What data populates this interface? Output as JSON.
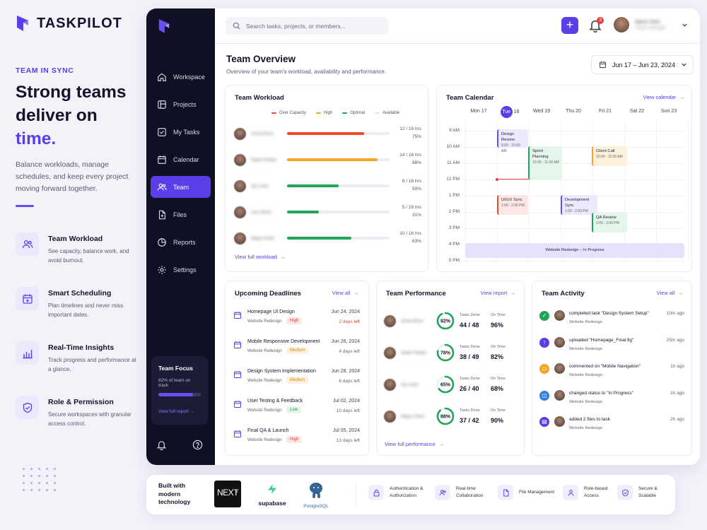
{
  "brand": {
    "name": "TASKPILOT"
  },
  "hero": {
    "kicker": "TEAM IN SYNC",
    "headline_line1": "Strong teams",
    "headline_line2_prefix": "deliver on ",
    "headline_line2_accent": "time.",
    "subcopy": "Balance workloads, manage schedules, and keep every project moving forward together."
  },
  "features": [
    {
      "icon": "team-icon",
      "title": "Team Workload",
      "desc": "See capacity, balance work, and avoid burnout."
    },
    {
      "icon": "calendar-plus-icon",
      "title": "Smart Scheduling",
      "desc": "Plan timelines and never miss important dates."
    },
    {
      "icon": "bar-chart-icon",
      "title": "Real-Time Insights",
      "desc": "Track progress and performance at a glance."
    },
    {
      "icon": "shield-check-icon",
      "title": "Role & Permission",
      "desc": "Secure workspaces with granular access control."
    }
  ],
  "sidebar": {
    "items": [
      {
        "icon": "home-icon",
        "label": "Workspace"
      },
      {
        "icon": "folder-icon",
        "label": "Projects"
      },
      {
        "icon": "check-square-icon",
        "label": "My Tasks"
      },
      {
        "icon": "calendar-icon",
        "label": "Calendar"
      },
      {
        "icon": "users-icon",
        "label": "Team"
      },
      {
        "icon": "file-icon",
        "label": "Files"
      },
      {
        "icon": "reports-icon",
        "label": "Reports"
      },
      {
        "icon": "settings-icon",
        "label": "Settings"
      }
    ],
    "active": "Team",
    "focus": {
      "title": "Team Focus",
      "subtitle": "82% of team on track",
      "progress": 0.82,
      "link": "View full report →"
    }
  },
  "topbar": {
    "search_placeholder": "Search tasks, projects, or members...",
    "notification_count": "3",
    "user_name": "Name Here",
    "user_role": "Project Manager"
  },
  "page": {
    "title": "Team Overview",
    "subtitle": "Overview of your team's workload, availability and performance.",
    "date_range": "Jun 17 – Jun 23, 2024"
  },
  "workload": {
    "title": "Team Workload",
    "legend": [
      {
        "label": "Over Capacity",
        "color": "#ef4b2c"
      },
      {
        "label": "High",
        "color": "#f5a524"
      },
      {
        "label": "Optimal",
        "color": "#22a559"
      },
      {
        "label": "Available",
        "color": "#e4e4ec"
      }
    ],
    "rows": [
      {
        "name": "Anna Ross",
        "hours": "12 / 16 hrs",
        "pct": "75%",
        "fill": 0.75,
        "color": "#ef4b2c"
      },
      {
        "name": "Noah Parker",
        "hours": "14 / 16 hrs",
        "pct": "88%",
        "fill": 0.88,
        "color": "#f5a524"
      },
      {
        "name": "Ivy Lane",
        "hours": "8 / 16 hrs",
        "pct": "50%",
        "fill": 0.5,
        "color": "#22a559"
      },
      {
        "name": "Leo Grant",
        "hours": "5 / 16 hrs",
        "pct": "31%",
        "fill": 0.31,
        "color": "#22a559"
      },
      {
        "name": "Maya Chen",
        "hours": "10 / 16 hrs",
        "pct": "63%",
        "fill": 0.63,
        "color": "#22a559"
      }
    ],
    "link": "View full workload"
  },
  "calendar": {
    "title": "Team Calendar",
    "link": "View calendar",
    "days": [
      "Mon 17",
      "Tue",
      "18",
      "Wed 19",
      "Thu 20",
      "Fri 21",
      "Sat 22",
      "Sun 23"
    ],
    "hours": [
      "9 AM",
      "10 AM",
      "11 AM",
      "12 PM",
      "1 PM",
      "2 PM",
      "3 PM",
      "4 PM",
      "5 PM"
    ],
    "events": [
      {
        "title": "Design Review",
        "time": "9:00 - 10:00 AM"
      },
      {
        "title": "Sprint Planning",
        "time": "10:00 - 11:30 AM"
      },
      {
        "title": "Client Call",
        "time": "10:00 - 11:00 AM"
      },
      {
        "title": "UI/UX Sync",
        "time": "1:00 - 2:00 PM"
      },
      {
        "title": "Development Sync",
        "time": "1:00 - 2:00 PM"
      },
      {
        "title": "QA Review",
        "time": "2:00 - 3:00 PM"
      },
      {
        "title": "Website Redesign – In Progress",
        "time": ""
      }
    ]
  },
  "deadlines": {
    "title": "Upcoming Deadlines",
    "link": "View all",
    "rows": [
      {
        "title": "Homepage UI Design",
        "project": "Website Redesign",
        "priority": "High",
        "date": "Jun 24, 2024",
        "left": "2 days left",
        "urgent": true
      },
      {
        "title": "Mobile Responsive Development",
        "project": "Website Redesign",
        "priority": "Medium",
        "date": "Jun 26, 2024",
        "left": "4 days left",
        "urgent": false
      },
      {
        "title": "Design System Implementation",
        "project": "Website Redesign",
        "priority": "Medium",
        "date": "Jun 28, 2024",
        "left": "6 days left",
        "urgent": false
      },
      {
        "title": "User Testing & Feedback",
        "project": "Website Redesign",
        "priority": "Low",
        "date": "Jul 02, 2024",
        "left": "10 days left",
        "urgent": false
      },
      {
        "title": "Final QA & Launch",
        "project": "Website Redesign",
        "priority": "High",
        "date": "Jul 05, 2024",
        "left": "13 days left",
        "urgent": false
      }
    ]
  },
  "performance": {
    "title": "Team Performance",
    "link": "View report",
    "done_label": "Tasks Done",
    "ontime_label": "On Time",
    "rows": [
      {
        "name": "Anna Ross",
        "score": "92%",
        "ring": 0.92,
        "done": "44 / 48",
        "ontime": "96%"
      },
      {
        "name": "Noah Parker",
        "score": "78%",
        "ring": 0.78,
        "done": "38 / 49",
        "ontime": "82%"
      },
      {
        "name": "Ivy Lane",
        "score": "65%",
        "ring": 0.65,
        "done": "26 / 40",
        "ontime": "68%"
      },
      {
        "name": "Maya Chen",
        "score": "88%",
        "ring": 0.88,
        "done": "37 / 42",
        "ontime": "90%"
      }
    ],
    "footer_link": "View full performance"
  },
  "activity": {
    "title": "Team Activity",
    "link": "View all",
    "rows": [
      {
        "icon": "check-icon",
        "color": "#22a559",
        "text": "completed task \"Design System Setup\"",
        "project": "Website Redesign",
        "time": "10m ago"
      },
      {
        "icon": "upload-icon",
        "color": "#5b3ee8",
        "text": "uploaded \"Homepage_Final.fig\"",
        "project": "Website Redesign",
        "time": "25m ago"
      },
      {
        "icon": "comment-icon",
        "color": "#f5a524",
        "text": "commented on \"Mobile Navigation\"",
        "project": "Website Redesign",
        "time": "1h ago"
      },
      {
        "icon": "status-icon",
        "color": "#2f7de1",
        "text": "changed status to \"In Progress\"",
        "project": "Website Redesign",
        "time": "1h ago"
      },
      {
        "icon": "file-icon",
        "color": "#5b3ee8",
        "text": "added 2 files to task",
        "project": "Website Redesign",
        "time": "2h ago"
      }
    ]
  },
  "footer": {
    "built_with": "Built with modern technology",
    "next_label": "NEXT",
    "next_sub": ".JS",
    "supabase": "supabase",
    "postgres": "PostgreSQL",
    "features": [
      {
        "icon": "lock-icon",
        "label": "Authentication & Authorization"
      },
      {
        "icon": "collab-icon",
        "label": "Real-time Collaboration"
      },
      {
        "icon": "file-manage-icon",
        "label": "File Management"
      },
      {
        "icon": "role-icon",
        "label": "Role-based Access"
      },
      {
        "icon": "secure-icon",
        "label": "Secure & Scalable"
      }
    ]
  }
}
